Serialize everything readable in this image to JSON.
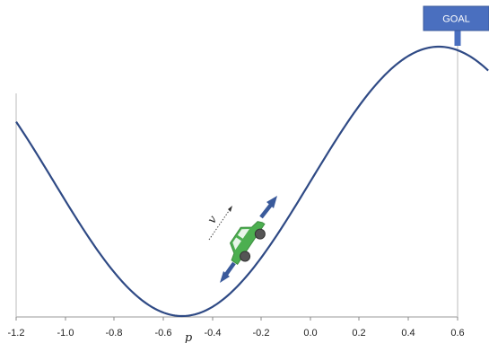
{
  "axis": {
    "ticks": [
      "-1.2",
      "-1.0",
      "-0.8",
      "-0.6",
      "-0.4",
      "-0.2",
      "0.0",
      "0.2",
      "0.4",
      "0.6"
    ],
    "xlabel": "p"
  },
  "goal": {
    "label": "GOAL",
    "position": 0.6
  },
  "car": {
    "velocity_label": "v",
    "position": -0.3,
    "color": "#4caf50"
  },
  "colors": {
    "curve": "#2f4a85",
    "arrow": "#3a5a9b",
    "goal_box": "#4a6fbf"
  }
}
